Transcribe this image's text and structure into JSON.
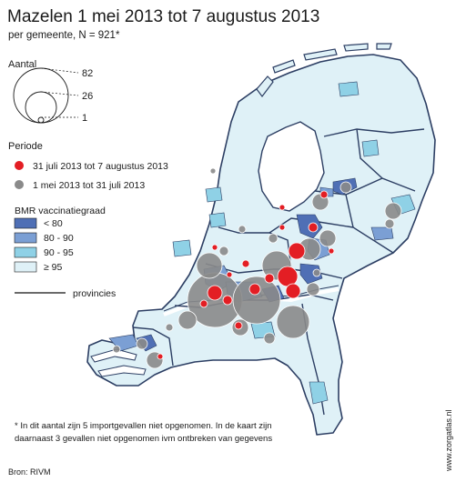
{
  "title": "Mazelen 1 mei 2013 tot 7 augustus 2013",
  "subtitle": "per gemeente, N = 921*",
  "size_legend": {
    "heading": "Aantal",
    "values": [
      "82",
      "26",
      "1"
    ]
  },
  "period_legend": {
    "heading": "Periode",
    "items": [
      {
        "label": "31 juli 2013 tot 7 augustus 2013",
        "color": "#e31e24"
      },
      {
        "label": "1 mei 2013 tot 31 juli 2013",
        "color": "#8a8a8a"
      }
    ]
  },
  "vaccination_legend": {
    "heading": "BMR vaccinatiegraad",
    "items": [
      {
        "label": "< 80",
        "color": "#4f6fb5"
      },
      {
        "label": "80 - 90",
        "color": "#7b9fd4"
      },
      {
        "label": "90 - 95",
        "color": "#8fd1e6"
      },
      {
        "label": "≥ 95",
        "color": "#dff1f7"
      }
    ]
  },
  "provinces_legend": {
    "label": "provincies"
  },
  "footnote": {
    "line1": "* In dit aantal zijn 5 importgevallen niet opgenomen. In de kaart zijn",
    "line2": "daarnaast 3 gevallen niet opgenomen ivm ontbreken van gegevens"
  },
  "source": "Bron: RIVM",
  "watermark": "www.zorgatlas.nl",
  "colors": {
    "land": "#dff1f7",
    "border": "#2c3e63",
    "water": "#ffffff",
    "recent": "#e31e24",
    "earlier": "#8a8a8a"
  }
}
